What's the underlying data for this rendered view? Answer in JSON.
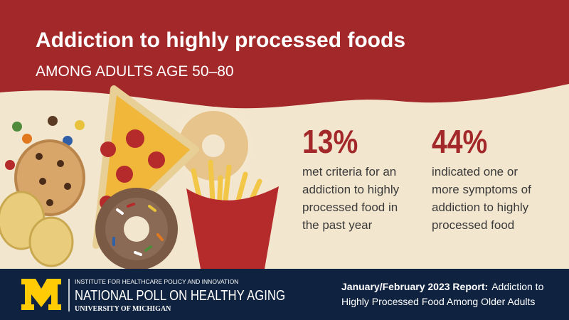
{
  "header": {
    "title": "Addiction to highly processed foods",
    "subtitle": "AMONG ADULTS AGE 50–80"
  },
  "stats": [
    {
      "figure": "13%",
      "lines": [
        "met criteria for an",
        "addiction to highly",
        "processed food in",
        "the past year"
      ]
    },
    {
      "figure": "44%",
      "lines": [
        "indicated one or",
        "more symptoms of",
        "addiction to highly",
        "processed food"
      ]
    }
  ],
  "footer": {
    "institute": "INSTITUTE FOR HEALTHCARE POLICY AND INNOVATION",
    "poll": "NATIONAL POLL ON HEALTHY AGING",
    "university": "UNIVERSITY OF MICHIGAN",
    "report_bold": "January/February 2023 Report:",
    "report_rest": "Addiction to",
    "report_line2": "Highly Processed Food Among Older Adults"
  }
}
